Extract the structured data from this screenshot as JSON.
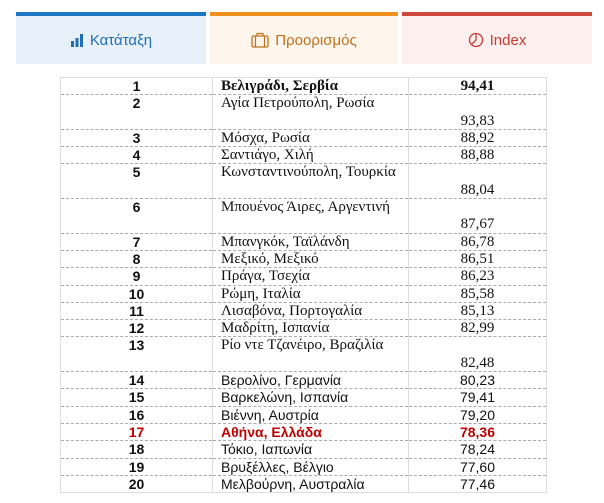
{
  "tabs": [
    {
      "label": "Κατάταξη",
      "icon": "bar-chart-icon",
      "color": "#1f77c4"
    },
    {
      "label": "Προορισμός",
      "icon": "suitcase-icon",
      "color": "#f0921e"
    },
    {
      "label": "Index",
      "icon": "pie-chart-icon",
      "color": "#d0473c"
    }
  ],
  "highlight_color": "#c00000",
  "rows": [
    {
      "rank": "1",
      "name": "Βελιγράδι, Σερβία",
      "value": "94,41"
    },
    {
      "rank": "2",
      "name": "Αγία Πετρούπολη, Ρωσία",
      "value": "93,83"
    },
    {
      "rank": "3",
      "name": "Μόσχα, Ρωσία",
      "value": "88,92"
    },
    {
      "rank": "4",
      "name": "Σαντιάγο, Χιλή",
      "value": "88,88"
    },
    {
      "rank": "5",
      "name": "Κωνσταντινούπολη, Τουρκία",
      "value": "88,04"
    },
    {
      "rank": "6",
      "name": "Μπουένος Άιρες, Αργεντινή",
      "value": "87,67"
    },
    {
      "rank": "7",
      "name": "Μπανγκόκ, Ταϊλάνδη",
      "value": "86,78"
    },
    {
      "rank": "8",
      "name": "Μεξικό, Μεξικό",
      "value": "86,51"
    },
    {
      "rank": "9",
      "name": "Πράγα, Τσεχία",
      "value": "86,23"
    },
    {
      "rank": "10",
      "name": "Ρώμη, Ιταλία",
      "value": "85,58"
    },
    {
      "rank": "11",
      "name": "Λισαβόνα, Πορτογαλία",
      "value": "85,13"
    },
    {
      "rank": "12",
      "name": "Μαδρίτη, Ισπανία",
      "value": "82,99"
    },
    {
      "rank": "13",
      "name": "Ρίο ντε Τζανέιρο, Βραζιλία",
      "value": "82,48"
    },
    {
      "rank": "14",
      "name": "Βερολίνο, Γερμανία",
      "value": "80,23"
    },
    {
      "rank": "15",
      "name": "Βαρκελώνη, Ισπανία",
      "value": "79,41"
    },
    {
      "rank": "16",
      "name": "Βιέννη, Αυστρία",
      "value": "79,20"
    },
    {
      "rank": "17",
      "name": "Αθήνα, Ελλάδα",
      "value": "78,36"
    },
    {
      "rank": "18",
      "name": "Τόκιο, Ιαπωνία",
      "value": "78,24"
    },
    {
      "rank": "19",
      "name": "Βρυξέλλες, Βέλγιο",
      "value": "77,60"
    },
    {
      "rank": "20",
      "name": "Μελβούρνη, Αυστραλία",
      "value": "77,46"
    }
  ]
}
